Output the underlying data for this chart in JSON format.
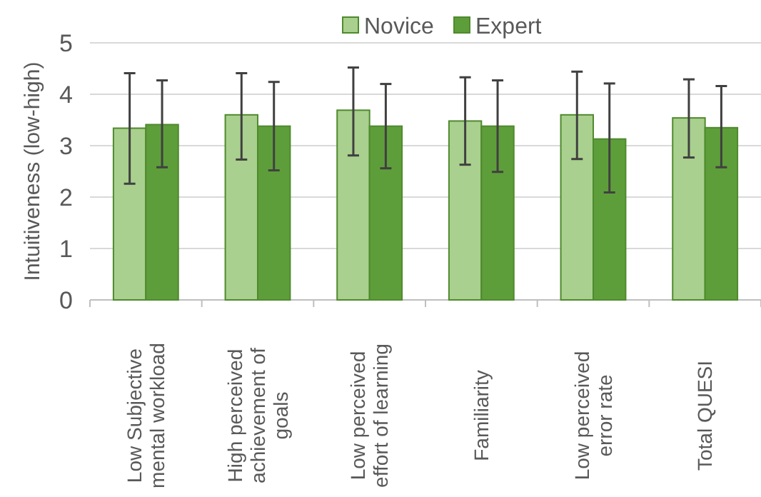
{
  "chart_data": {
    "type": "bar",
    "ylabel": "Intuitiveness (low-high)",
    "categories": [
      "Low Subjective mental workload",
      "High perceived achievement of goals",
      "Low perceived effort of learning",
      "Familiarity",
      "Low perceived error rate",
      "Total QUESI"
    ],
    "series": [
      {
        "name": "Novice",
        "color": "#a9d08e",
        "values": [
          3.34,
          3.6,
          3.69,
          3.48,
          3.6,
          3.54
        ],
        "errors": [
          [
            2.26,
            4.41
          ],
          [
            2.73,
            4.41
          ],
          [
            2.81,
            4.52
          ],
          [
            2.63,
            4.33
          ],
          [
            2.74,
            4.44
          ],
          [
            2.77,
            4.29
          ]
        ]
      },
      {
        "name": "Expert",
        "color": "#5e9e3a",
        "values": [
          3.41,
          3.38,
          3.38,
          3.38,
          3.13,
          3.35
        ],
        "errors": [
          [
            2.58,
            4.27
          ],
          [
            2.52,
            4.24
          ],
          [
            2.56,
            4.2
          ],
          [
            2.49,
            4.27
          ],
          [
            2.09,
            4.21
          ],
          [
            2.58,
            4.16
          ]
        ]
      }
    ],
    "ylim": [
      0,
      5
    ],
    "yticks": [
      0,
      1,
      2,
      3,
      4,
      5
    ],
    "grid": "y",
    "legend": "top"
  }
}
